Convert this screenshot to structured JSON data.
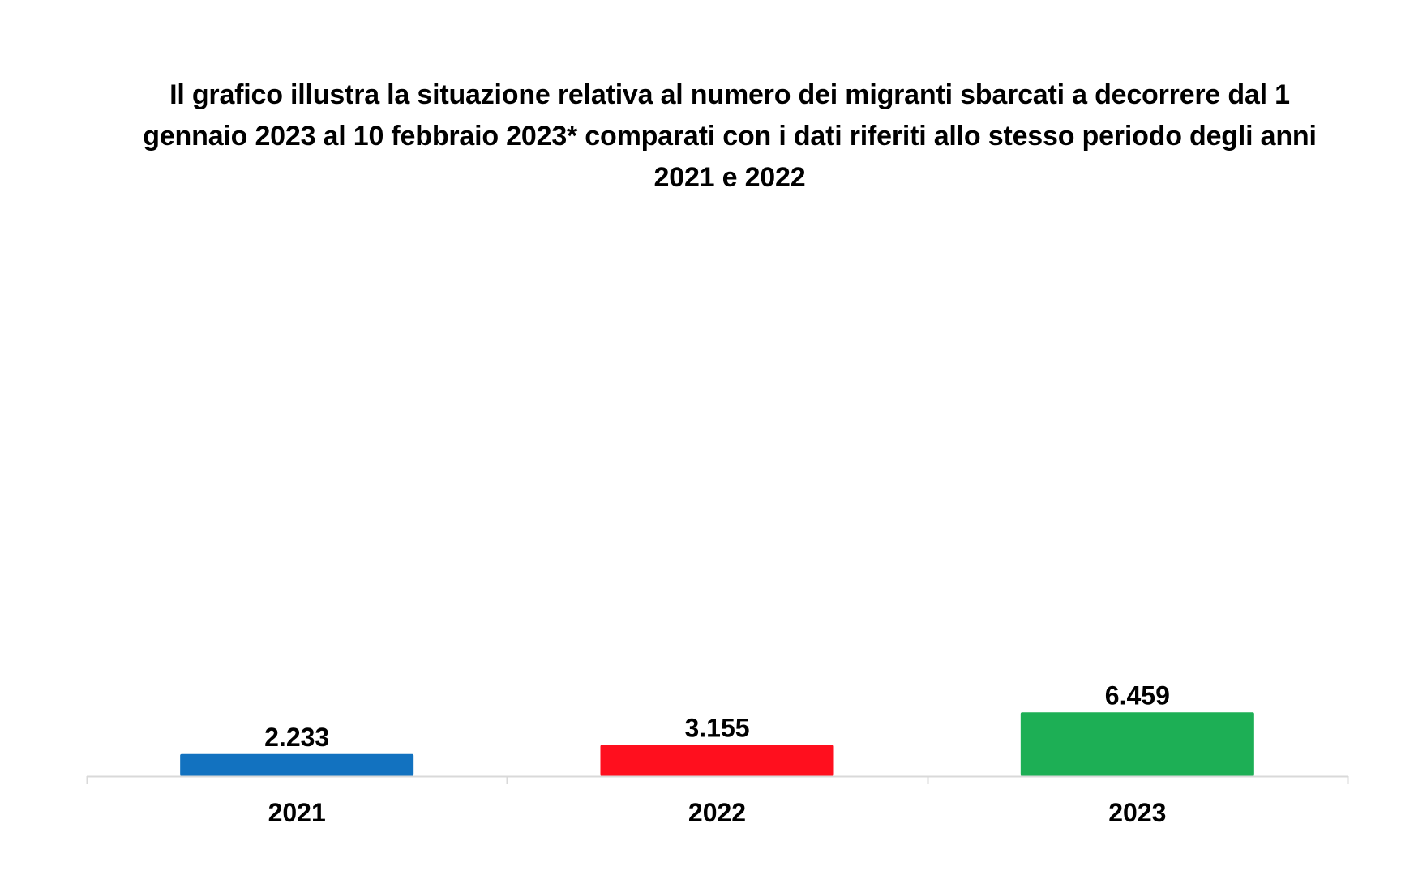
{
  "chart_data": {
    "type": "bar",
    "title": "Il grafico illustra la situazione relativa al numero dei migranti sbarcati a decorrere dal 1 gennaio 2023 al 10 febbraio 2023* comparati con i dati riferiti allo stesso periodo degli anni 2021 e 2022",
    "categories": [
      "2021",
      "2022",
      "2023"
    ],
    "values": [
      2233,
      3155,
      6459
    ],
    "value_labels": [
      "2.233",
      "3.155",
      "6.459"
    ],
    "colors": [
      "#1272C0",
      "#FF0F1E",
      "#1DAF55"
    ],
    "xlabel": "",
    "ylabel": "",
    "ylim": [
      0,
      70000
    ],
    "grid": false,
    "legend": "none"
  }
}
